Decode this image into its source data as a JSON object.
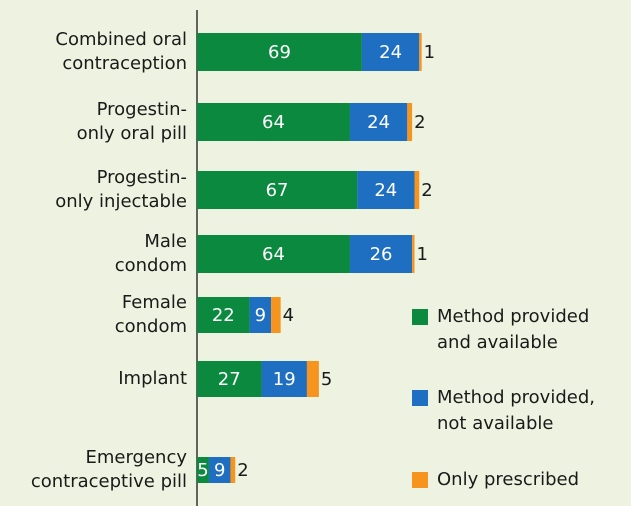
{
  "chart_data": {
    "type": "stacked-bar-horizontal",
    "categories": [
      [
        "Combined oral",
        "contraception"
      ],
      [
        "Progestin-",
        "only oral pill"
      ],
      [
        "Progestin-",
        "only injectable"
      ],
      [
        "Male",
        "condom"
      ],
      [
        "Female",
        "condom"
      ],
      [
        "Implant"
      ],
      [
        "Emergency",
        "contraceptive pill"
      ]
    ],
    "series": [
      {
        "name": [
          "Method provided",
          "and available"
        ],
        "color": "#0b8a3f",
        "values": [
          69,
          64,
          67,
          64,
          22,
          27,
          5
        ]
      },
      {
        "name": [
          "Method provided,",
          "not available"
        ],
        "color": "#1e6fc1",
        "values": [
          24,
          24,
          24,
          26,
          9,
          19,
          9
        ]
      },
      {
        "name": [
          "Only prescribed"
        ],
        "color": "#f7941d",
        "values": [
          1,
          2,
          2,
          1,
          4,
          5,
          2
        ]
      }
    ]
  }
}
